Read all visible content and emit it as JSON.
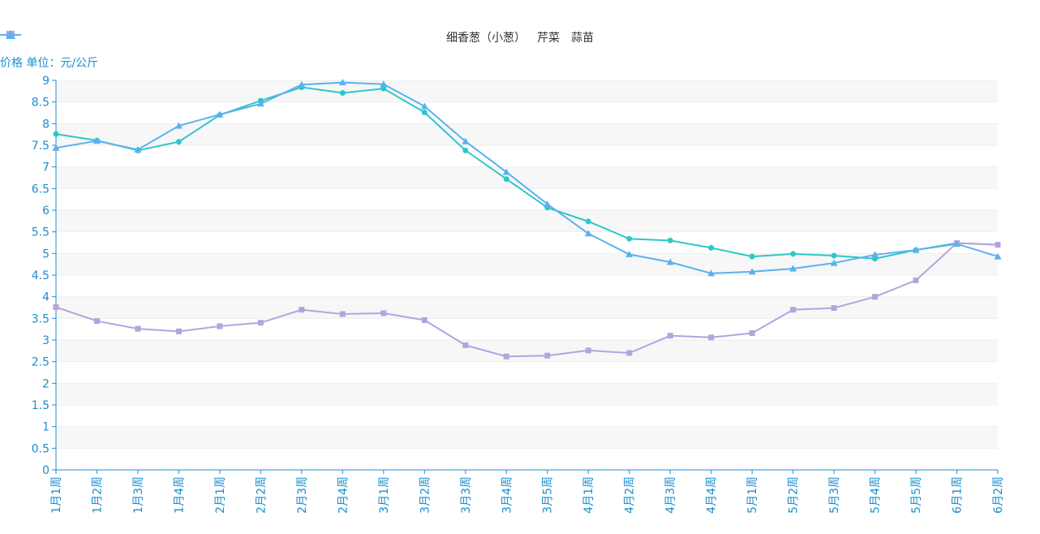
{
  "chart_data": {
    "type": "line",
    "ylabel": "价格 单位：元/公斤",
    "ylim": [
      0,
      9
    ],
    "yticks": [
      0,
      0.5,
      1,
      1.5,
      2,
      2.5,
      3,
      3.5,
      4,
      4.5,
      5,
      5.5,
      6,
      6.5,
      7,
      7.5,
      8,
      8.5,
      9
    ],
    "grid": "horizontal bands",
    "legend_position": "top-center",
    "categories": [
      "1月1周",
      "1月2周",
      "1月3周",
      "1月4周",
      "2月1周",
      "2月2周",
      "2月3周",
      "2月4周",
      "3月1周",
      "3月2周",
      "3月3周",
      "3月4周",
      "3月5周",
      "4月1周",
      "4月2周",
      "4月3周",
      "4月4周",
      "5月1周",
      "5月2周",
      "5月3周",
      "5月4周",
      "5月5周",
      "6月1周",
      "6月2周"
    ],
    "series": [
      {
        "name": "细香葱（小葱）",
        "color": "#2ec7c9",
        "marker": "circle",
        "values": [
          7.76,
          7.61,
          7.38,
          7.58,
          8.2,
          8.53,
          8.84,
          8.71,
          8.81,
          8.26,
          7.38,
          6.72,
          6.06,
          5.74,
          5.34,
          5.3,
          5.13,
          4.93,
          4.99,
          4.95,
          4.88,
          5.08,
          5.24,
          5.2
        ]
      },
      {
        "name": "芹菜",
        "color": "#b6a2de",
        "marker": "square",
        "values": [
          3.76,
          3.44,
          3.26,
          3.2,
          3.32,
          3.4,
          3.7,
          3.6,
          3.62,
          3.46,
          2.88,
          2.62,
          2.64,
          2.76,
          2.7,
          3.1,
          3.06,
          3.16,
          3.7,
          3.74,
          4.0,
          4.38,
          5.24,
          5.2
        ]
      },
      {
        "name": "蒜苗",
        "color": "#5ab1ef",
        "marker": "triangle",
        "values": [
          7.44,
          7.6,
          7.4,
          7.95,
          8.21,
          8.46,
          8.9,
          8.95,
          8.91,
          8.4,
          7.59,
          6.88,
          6.14,
          5.46,
          4.98,
          4.8,
          4.54,
          4.58,
          4.65,
          4.78,
          4.97,
          5.08,
          5.22,
          4.93
        ]
      }
    ]
  },
  "colors": {
    "axis": "#1a8fcf",
    "band": "#f7f7f7",
    "gridline": "#eeeeee"
  }
}
